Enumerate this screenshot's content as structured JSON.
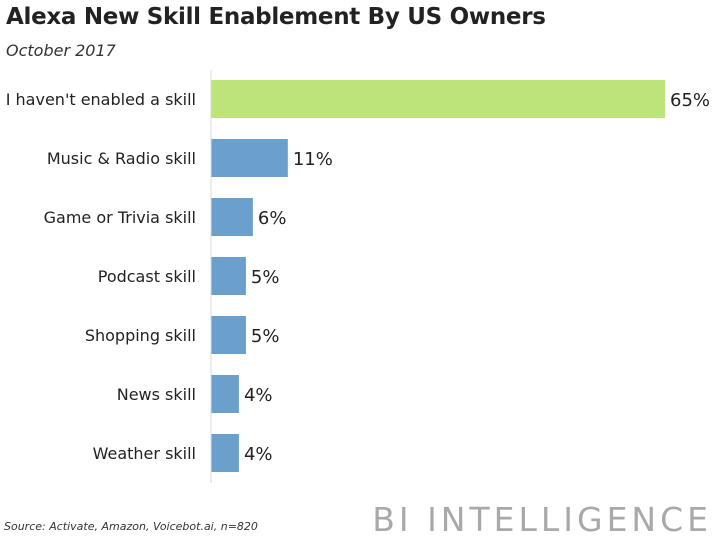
{
  "title": "Alexa New Skill Enablement By US Owners",
  "subtitle": "October 2017",
  "source": "Source: Activate, Amazon, Voicebot.ai, n=820",
  "brand": "BI INTELLIGENCE",
  "colors": {
    "highlight_bar": "#bde37b",
    "default_bar": "#6b9fcc",
    "axis": "#d8d8d8",
    "text": "#222222"
  },
  "chart_data": {
    "type": "bar",
    "orientation": "horizontal",
    "title": "Alexa New Skill Enablement By US Owners",
    "subtitle": "October 2017",
    "categories": [
      "I haven't enabled a skill",
      "Music & Radio skill",
      "Game or Trivia skill",
      "Podcast skill",
      "Shopping skill",
      "News skill",
      "Weather skill"
    ],
    "values": [
      65,
      11,
      6,
      5,
      5,
      4,
      4
    ],
    "value_labels": [
      "65%",
      "11%",
      "6%",
      "5%",
      "5%",
      "4%",
      "4%"
    ],
    "unit": "%",
    "highlight_index": 0,
    "xlim": [
      0,
      65
    ],
    "grid": false,
    "legend": "none"
  }
}
